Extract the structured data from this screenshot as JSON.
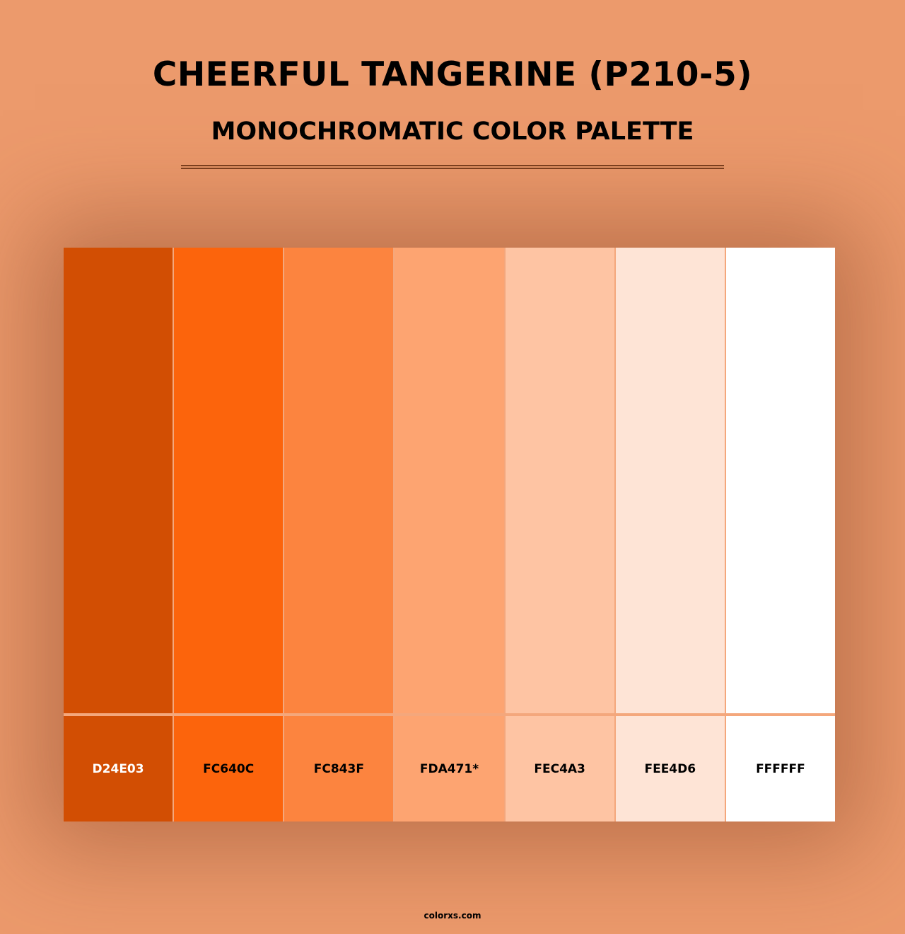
{
  "title": "CHEERFUL TANGERINE (P210-5)",
  "subtitle": "MONOCHROMATIC COLOR PALETTE",
  "swatches": [
    {
      "hex": "D24E03",
      "color": "#D24E03",
      "text_color": "#ffffff"
    },
    {
      "hex": "FC640C",
      "color": "#FC640C",
      "text_color": "#000000"
    },
    {
      "hex": "FC843F",
      "color": "#FC843F",
      "text_color": "#000000"
    },
    {
      "hex": "FDA471*",
      "color": "#FDA471",
      "text_color": "#000000"
    },
    {
      "hex": "FEC4A3",
      "color": "#FEC4A3",
      "text_color": "#000000"
    },
    {
      "hex": "FEE4D6",
      "color": "#FEE4D6",
      "text_color": "#000000"
    },
    {
      "hex": "FFFFFF",
      "color": "#FFFFFF",
      "text_color": "#000000"
    }
  ],
  "footer": "colorxs.com"
}
